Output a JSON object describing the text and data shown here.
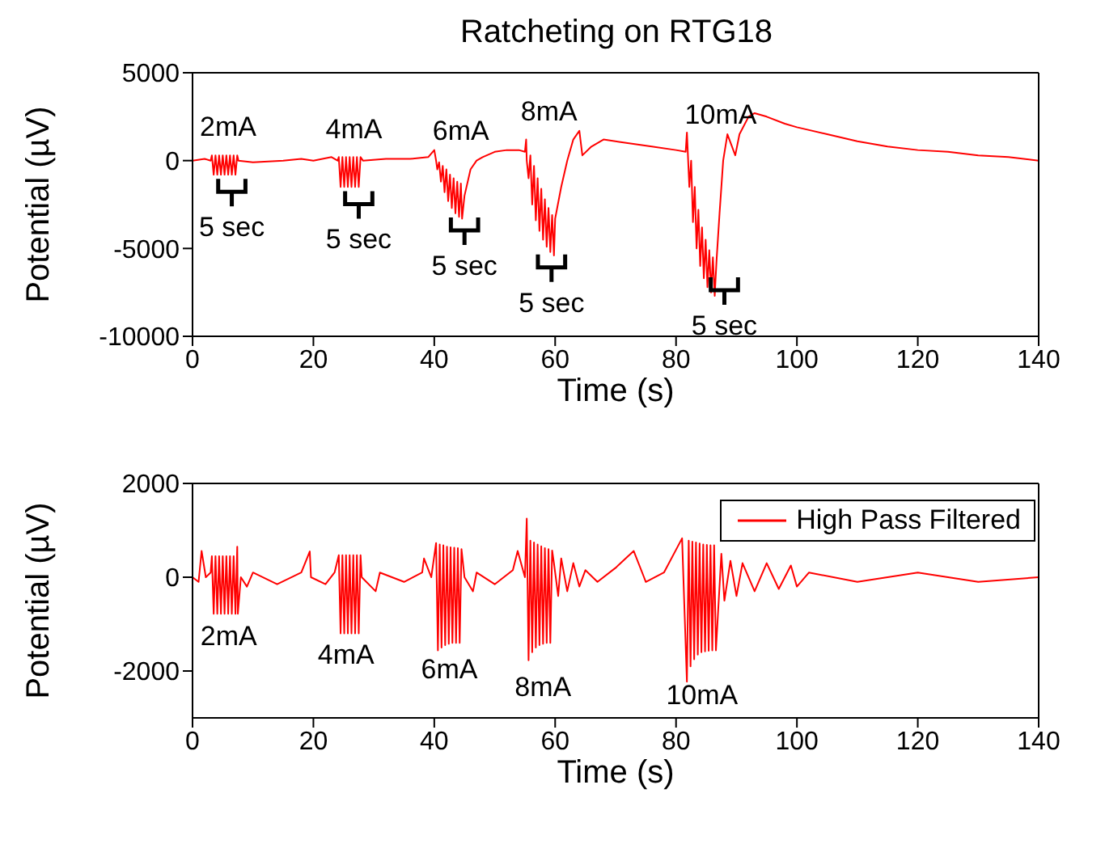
{
  "chart_data": [
    {
      "type": "line",
      "title": "Ratcheting on RTG18",
      "xlabel": "Time (s)",
      "ylabel": "Potential (µV)",
      "xlim": [
        0,
        140
      ],
      "xticks": [
        0,
        20,
        40,
        60,
        80,
        100,
        120,
        140
      ],
      "ylim": [
        -10000,
        5000
      ],
      "yticks": [
        -10000,
        -5000,
        0,
        5000
      ],
      "annotations": [
        "2mA",
        "5 sec",
        "4mA",
        "5 sec",
        "6mA",
        "5 sec",
        "8mA",
        "5 sec",
        "10mA",
        "5 sec"
      ],
      "series": [
        {
          "color": "#ff0000",
          "x": [
            0,
            2,
            3,
            3.2,
            3.5,
            3.8,
            4.1,
            4.4,
            4.7,
            5.0,
            5.3,
            5.6,
            5.9,
            6.2,
            6.5,
            6.8,
            7.1,
            7.4,
            7.6,
            10,
            15,
            18,
            20,
            23,
            24,
            24.2,
            24.5,
            24.8,
            25.1,
            25.4,
            25.7,
            26.0,
            26.3,
            26.6,
            26.9,
            27.2,
            27.5,
            27.8,
            28.2,
            32,
            36,
            39,
            40,
            40.3,
            40.5,
            40.8,
            41.1,
            41.4,
            41.7,
            42.0,
            42.3,
            42.6,
            42.9,
            43.2,
            43.5,
            43.8,
            44.1,
            44.4,
            44.6,
            45,
            46,
            47,
            48,
            50,
            52,
            54,
            55,
            55.2,
            55.3,
            55.6,
            55.9,
            56.2,
            56.5,
            56.8,
            57.1,
            57.4,
            57.7,
            58.0,
            58.3,
            58.6,
            58.9,
            59.2,
            59.5,
            59.8,
            60,
            61,
            62,
            63,
            64,
            64.5,
            66,
            68,
            72,
            76,
            80,
            81.6,
            81.8,
            82.2,
            82.5,
            82.8,
            83.1,
            83.4,
            83.7,
            84,
            84.3,
            84.6,
            84.9,
            85.2,
            85.5,
            85.8,
            86.1,
            86.4,
            86.7,
            87.2,
            87.8,
            88.5,
            89.8,
            90.5,
            92,
            93,
            95,
            98,
            100,
            105,
            110,
            115,
            120,
            125,
            130,
            135,
            140
          ],
          "values": [
            0,
            100,
            0,
            300,
            -800,
            300,
            -800,
            300,
            -800,
            300,
            -800,
            300,
            -800,
            300,
            -800,
            300,
            -800,
            300,
            0,
            -100,
            0,
            100,
            0,
            200,
            0,
            200,
            -1500,
            200,
            -1500,
            200,
            -1500,
            200,
            -1500,
            200,
            -1500,
            200,
            -1500,
            200,
            0,
            100,
            100,
            200,
            600,
            0,
            -500,
            -100,
            -1200,
            -300,
            -1800,
            -500,
            -2300,
            -800,
            -2700,
            -1000,
            -3000,
            -1200,
            -3200,
            -1300,
            -3300,
            -2000,
            -500,
            0,
            200,
            500,
            600,
            600,
            500,
            1200,
            0,
            -1000,
            300,
            -2500,
            -300,
            -3400,
            -1000,
            -4000,
            -1600,
            -4500,
            -2200,
            -4900,
            -2700,
            -5200,
            -3100,
            -5400,
            -3300,
            -1500,
            0,
            1200,
            1700,
            300,
            800,
            1200,
            1000,
            800,
            600,
            500,
            1600,
            -1500,
            0,
            -3500,
            -1500,
            -5000,
            -2800,
            -6000,
            -3800,
            -6700,
            -4500,
            -7200,
            -5100,
            -7500,
            -5500,
            -7700,
            -5700,
            -3000,
            0,
            1500,
            300,
            1500,
            2500,
            2700,
            2500,
            2100,
            1900,
            1500,
            1100,
            800,
            600,
            500,
            300,
            200,
            0
          ]
        }
      ]
    },
    {
      "type": "line",
      "xlabel": "Time (s)",
      "ylabel": "Potential (µV)",
      "xlim": [
        0,
        140
      ],
      "xticks": [
        0,
        20,
        40,
        60,
        80,
        100,
        120,
        140
      ],
      "ylim": [
        -3000,
        2000
      ],
      "yticks": [
        -2000,
        0,
        2000
      ],
      "legend": "top right",
      "annotations": [
        "2mA",
        "4mA",
        "6mA",
        "8mA",
        "10mA"
      ],
      "series": [
        {
          "name": "High Pass Filtered",
          "color": "#ff0000",
          "x": [
            0,
            1,
            1.5,
            2.2,
            3,
            3.2,
            3.5,
            3.8,
            4.1,
            4.4,
            4.7,
            5.0,
            5.3,
            5.6,
            5.9,
            6.2,
            6.5,
            6.8,
            7.1,
            7.4,
            7.5,
            8,
            9,
            10,
            14,
            18,
            19.4,
            19.6,
            22,
            23.5,
            24.2,
            24.5,
            24.8,
            25.1,
            25.4,
            25.7,
            26.0,
            26.3,
            26.6,
            26.9,
            27.2,
            27.5,
            27.8,
            28,
            30.3,
            31,
            35,
            38,
            38.3,
            39.5,
            40.3,
            40.6,
            40.9,
            41.2,
            41.5,
            41.8,
            42.1,
            42.4,
            42.7,
            43.0,
            43.3,
            43.6,
            43.9,
            44.2,
            44.5,
            45,
            46.4,
            47,
            50,
            53,
            53.8,
            55,
            55.3,
            55.6,
            55.9,
            56.2,
            56.5,
            56.8,
            57.1,
            57.4,
            57.7,
            58.0,
            58.3,
            58.6,
            58.9,
            59.2,
            59.5,
            59.8,
            60.5,
            61,
            62,
            63,
            64,
            65,
            67,
            70,
            73,
            74.7,
            75,
            78,
            81,
            81.8,
            82.1,
            82.4,
            82.7,
            83.0,
            83.3,
            83.6,
            83.9,
            84.2,
            84.5,
            84.8,
            85.1,
            85.4,
            85.7,
            86.0,
            86.3,
            86.6,
            87.5,
            88,
            89,
            90,
            91,
            93,
            95,
            97,
            99,
            100,
            102,
            110,
            120,
            130,
            140
          ],
          "values": [
            0,
            -100,
            560,
            0,
            100,
            450,
            -780,
            450,
            -780,
            450,
            -780,
            450,
            -780,
            450,
            -780,
            450,
            -780,
            450,
            -780,
            650,
            -780,
            0,
            -200,
            100,
            -150,
            100,
            550,
            0,
            -150,
            100,
            470,
            -1200,
            470,
            -1200,
            470,
            -1200,
            470,
            -1200,
            470,
            -1200,
            470,
            -1200,
            470,
            0,
            -300,
            100,
            -100,
            100,
            400,
            0,
            730,
            -1560,
            700,
            -1500,
            680,
            -1450,
            650,
            -1420,
            640,
            -1400,
            630,
            -1400,
            620,
            -1400,
            600,
            0,
            -300,
            100,
            -150,
            150,
            560,
            0,
            1250,
            -1770,
            780,
            -1600,
            740,
            -1500,
            700,
            -1450,
            660,
            -1420,
            620,
            -1400,
            600,
            -1400,
            570,
            300,
            -400,
            400,
            -300,
            300,
            -200,
            150,
            -100,
            200,
            560,
            0,
            -100,
            100,
            830,
            -2230,
            780,
            -1900,
            760,
            -1750,
            740,
            -1650,
            720,
            -1600,
            700,
            -1580,
            690,
            -1570,
            680,
            -1560,
            680,
            -1560,
            500,
            -500,
            350,
            -400,
            300,
            -300,
            300,
            -250,
            250,
            -200,
            100,
            -100,
            100,
            -100,
            0
          ]
        }
      ]
    }
  ]
}
